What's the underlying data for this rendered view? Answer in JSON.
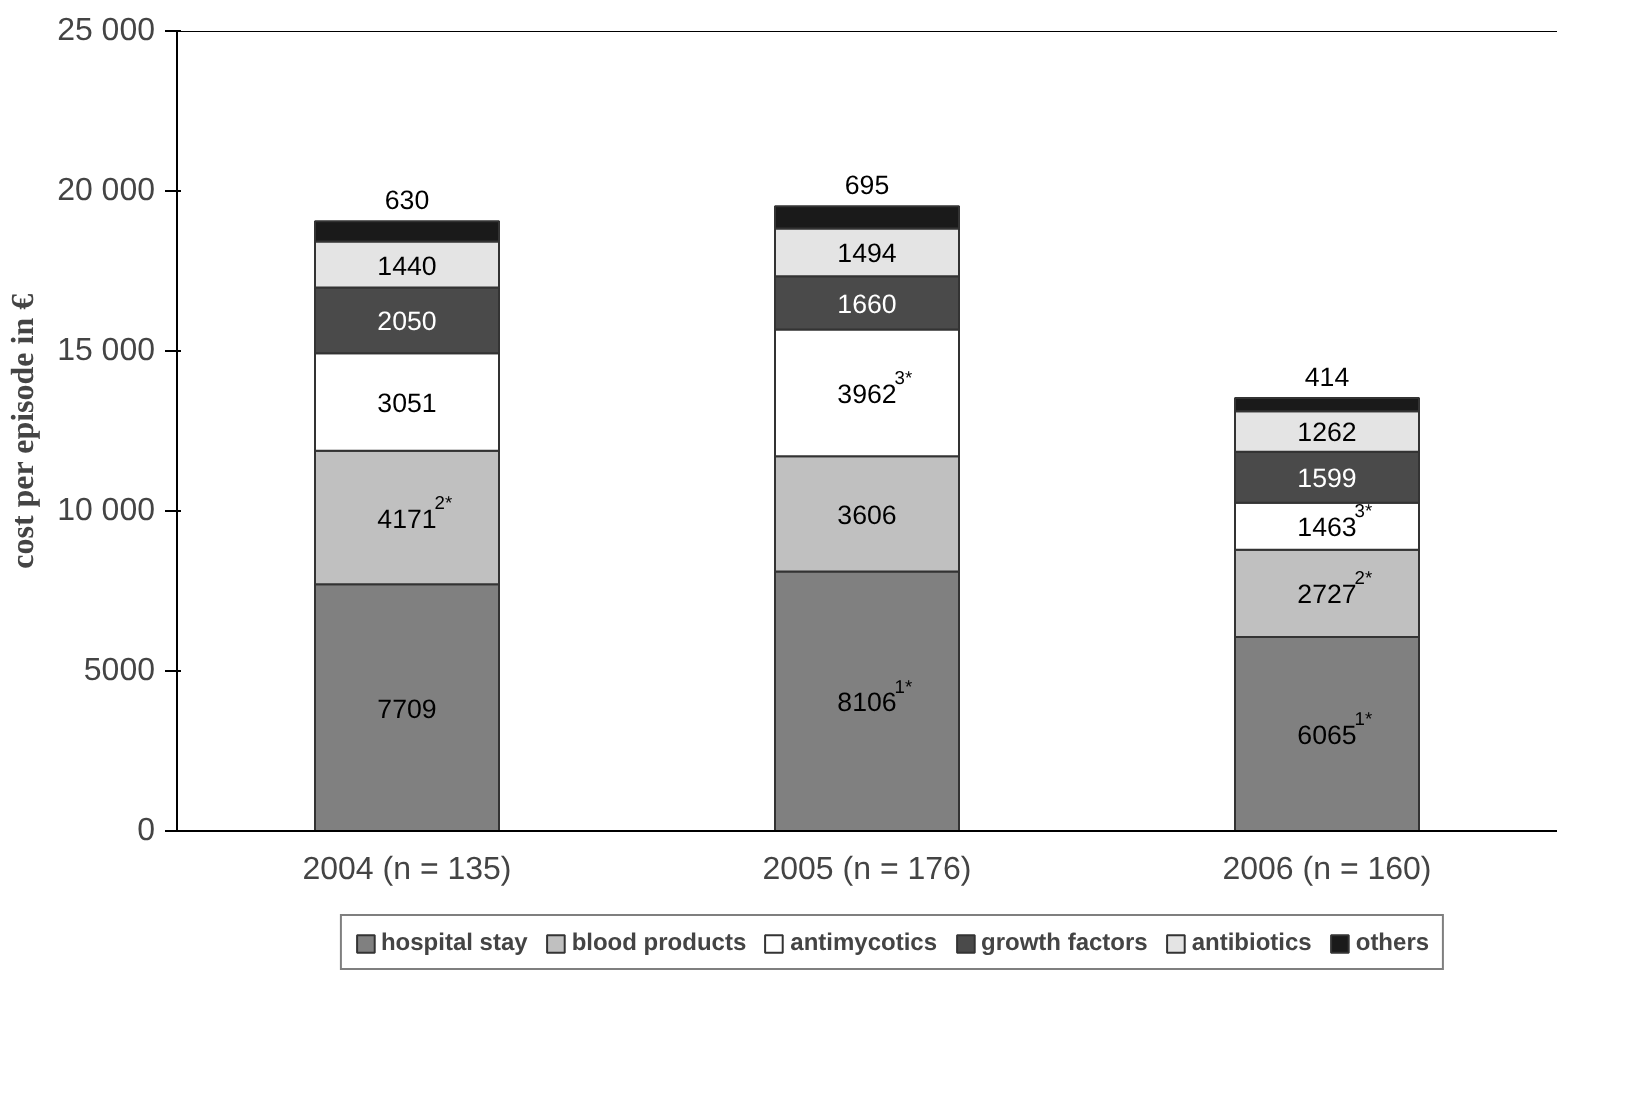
{
  "chart_data": {
    "type": "bar",
    "stacked": true,
    "ylabel": "cost per episode in €",
    "categories": [
      "2004 (n = 135)",
      "2005 (n = 176)",
      "2006 (n = 160)"
    ],
    "ylim": [
      0,
      25000
    ],
    "yticks": [
      0,
      5000,
      {
        "value": 10000,
        "label": "10 000"
      },
      {
        "value": 15000,
        "label": "15 000"
      },
      {
        "value": 20000,
        "label": "20 000"
      },
      {
        "value": 25000,
        "label": "25 000"
      }
    ],
    "grid": false,
    "legend": "bottom",
    "series": [
      {
        "name": "hospital stay",
        "color": "#808080",
        "values": [
          7709,
          8106,
          6065
        ],
        "value_labels": [
          "7709",
          "8106$^{1*}$",
          "6065$^{1*}$"
        ]
      },
      {
        "name": "blood products",
        "color": "#c0c0c0",
        "values": [
          4171,
          3606,
          2727
        ],
        "value_labels": [
          "4171$^{2*}$",
          "3606",
          "2727$^{2*}$"
        ]
      },
      {
        "name": "antimycotics",
        "color": "#ffffff",
        "values": [
          3051,
          3962,
          1463
        ],
        "value_labels": [
          "3051",
          "3962$^{3*}$",
          "1463$^{3*}$"
        ]
      },
      {
        "name": "growth factors",
        "color": "#4a4a4a",
        "values": [
          2050,
          1660,
          1599
        ],
        "value_labels": [
          "2050",
          "1660",
          "1599"
        ]
      },
      {
        "name": "antibiotics",
        "color": "#e4e4e4",
        "values": [
          1440,
          1494,
          1262
        ],
        "value_labels": [
          "1440",
          "1494",
          "1262"
        ]
      },
      {
        "name": "others",
        "color": "#1a1a1a",
        "values": [
          630,
          695,
          414
        ],
        "value_labels": [
          "630",
          "695",
          "414"
        ]
      }
    ]
  }
}
